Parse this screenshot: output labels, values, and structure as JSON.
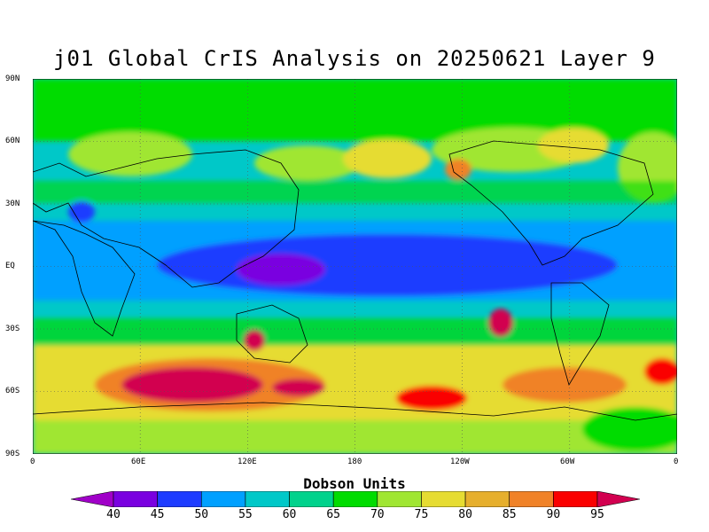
{
  "title": "j01 Global CrIS Analysis on 20250621 Layer 9",
  "y_ticks": [
    "90N",
    "60N",
    "30N",
    "EQ",
    "30S",
    "60S",
    "90S"
  ],
  "x_ticks": [
    "0",
    "60E",
    "120E",
    "180",
    "120W",
    "60W",
    "0"
  ],
  "colorbar": {
    "label": "Dobson Units",
    "levels": [
      "40",
      "45",
      "50",
      "55",
      "60",
      "65",
      "70",
      "75",
      "80",
      "85",
      "90",
      "95"
    ],
    "colors": [
      "#a000c8",
      "#7a00e0",
      "#1e3cff",
      "#00a0ff",
      "#00c8c8",
      "#00d28c",
      "#00dc00",
      "#a0e632",
      "#e6dc32",
      "#e6af2d",
      "#f08228",
      "#fa0000",
      "#d20050"
    ]
  },
  "map": {
    "ocean_background": "#32c8e6",
    "regions": {
      "north_polar": "#00dc00",
      "mid_lat_north": "#a0e632",
      "tropics": "#00a0ff",
      "tropical_core": "#1e3cff",
      "warm_pool": "#7a00e0",
      "southern_belt": "#e6dc32",
      "southern_high": "#f08228",
      "southern_max": "#d20050",
      "antarctic": "#e6dc32"
    }
  }
}
